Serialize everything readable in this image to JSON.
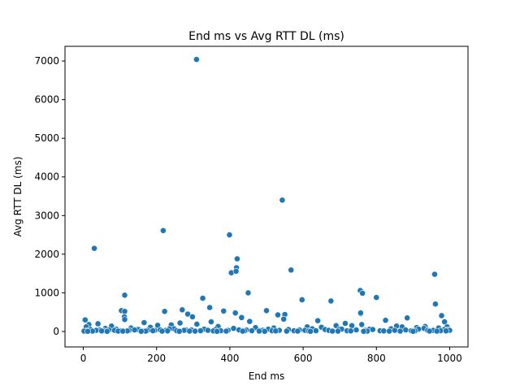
{
  "chart_data": {
    "type": "scatter",
    "title": "End ms vs Avg RTT DL (ms)",
    "xlabel": "End ms",
    "ylabel": "Avg RTT DL (ms)",
    "xlim": [
      -50,
      1050
    ],
    "ylim": [
      -400,
      7380
    ],
    "xticks": [
      0,
      200,
      400,
      600,
      800,
      1000
    ],
    "yticks": [
      0,
      1000,
      2000,
      3000,
      4000,
      5000,
      6000,
      7000
    ],
    "grid": false,
    "marker_color": "#1f77b4",
    "series": [
      {
        "x": [
          309,
          543,
          30,
          218,
          399,
          420,
          418,
          404,
          417,
          567,
          450,
          756,
          800,
          959,
          762,
          113,
          326,
          597,
          676,
          104,
          113,
          222,
          961,
          345,
          383,
          270,
          415,
          500,
          550,
          531,
          757,
          757,
          978,
          112,
          113,
          285,
          298,
          432,
          547,
          640,
          825,
          884,
          986,
          40,
          166,
          203,
          240,
          264,
          310,
          349,
          454,
          611,
          690,
          715,
          760,
          855,
          910,
          933,
          993,
          5,
          15,
          8,
          60,
          77,
          130,
          148,
          183,
          248,
          368,
          470,
          520,
          650,
          700,
          733,
          781,
          870,
          930,
          970,
          20,
          45,
          90,
          150,
          195,
          235,
          280,
          330,
          360,
          410,
          445,
          485,
          505,
          560,
          590,
          625,
          660,
          705,
          745,
          790,
          840,
          880,
          915,
          955,
          985,
          995,
          10,
          35,
          55,
          70,
          85,
          100,
          125,
          140,
          160,
          175,
          190,
          210,
          225,
          255,
          275,
          295,
          320,
          340,
          375,
          395,
          425,
          460,
          490,
          515,
          535,
          575,
          605,
          635,
          670,
          720,
          770,
          810,
          850,
          895,
          940,
          975,
          1000,
          2,
          25,
          50,
          95,
          120,
          170,
          230,
          290,
          355,
          390,
          440,
          480,
          525,
          585,
          615,
          680,
          730,
          775,
          820,
          865,
          905,
          945,
          990,
          12,
          65,
          108,
          158,
          215,
          262,
          305,
          365,
          435,
          495,
          555,
          620,
          695,
          765,
          835,
          900,
          965
        ],
        "y": [
          7040,
          3400,
          2150,
          2610,
          2500,
          1880,
          1650,
          1520,
          1560,
          1590,
          1000,
          1060,
          880,
          1480,
          990,
          940,
          860,
          820,
          790,
          540,
          520,
          520,
          710,
          620,
          530,
          560,
          480,
          540,
          440,
          430,
          460,
          480,
          410,
          380,
          310,
          450,
          380,
          360,
          320,
          280,
          290,
          350,
          250,
          200,
          230,
          160,
          170,
          220,
          190,
          250,
          260,
          120,
          150,
          210,
          180,
          140,
          100,
          130,
          120,
          300,
          180,
          120,
          80,
          140,
          90,
          60,
          110,
          70,
          130,
          100,
          90,
          110,
          70,
          150,
          60,
          120,
          80,
          90,
          50,
          40,
          60,
          50,
          30,
          70,
          40,
          60,
          50,
          80,
          40,
          30,
          60,
          50,
          40,
          70,
          50,
          60,
          40,
          50,
          70,
          40,
          60,
          30,
          50,
          40,
          20,
          30,
          20,
          40,
          30,
          20,
          30,
          40,
          20,
          30,
          20,
          40,
          30,
          20,
          30,
          40,
          20,
          30,
          20,
          30,
          40,
          20,
          30,
          20,
          30,
          20,
          30,
          20,
          30,
          20,
          30,
          20,
          30,
          20,
          30,
          20,
          30,
          10,
          10,
          15,
          10,
          15,
          10,
          15,
          10,
          15,
          10,
          15,
          10,
          15,
          10,
          15,
          10,
          15,
          10,
          15,
          10,
          15,
          10,
          15,
          5,
          5,
          8,
          5,
          8,
          5,
          8,
          5,
          8,
          5,
          8,
          5,
          8,
          5,
          8,
          5,
          8
        ]
      }
    ]
  }
}
